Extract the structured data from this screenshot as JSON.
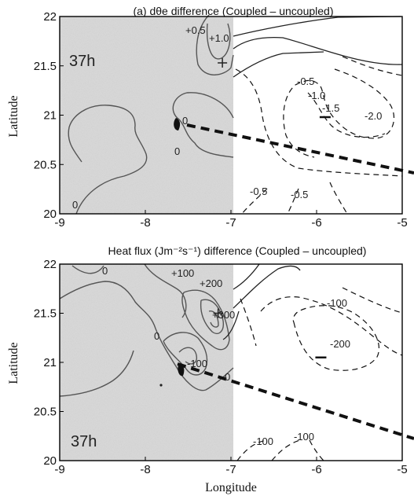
{
  "chart_data": [
    {
      "type": "contour",
      "title": "(a)  dθe difference (Coupled – uncoupled)",
      "ylabel": "Latitude",
      "xlabel": "",
      "xlim": [
        -9,
        -5
      ],
      "ylim": [
        20,
        22
      ],
      "xticks": [
        "-9",
        "-8",
        "-7",
        "-6",
        "-5"
      ],
      "yticks": [
        "20",
        "20.5",
        "21",
        "21.5",
        "22"
      ],
      "time_label": "37h",
      "contour_labels": [
        "+0.5",
        "+1.0",
        "0",
        "0",
        "0",
        "-0.5",
        "-1.0",
        "-1.5",
        "-2.0",
        "-0.5",
        "-0.5"
      ],
      "shaded_region_lon": [
        -9,
        -7
      ],
      "max_marker": {
        "lon": -7.1,
        "lat": 21.53
      },
      "min_marker": {
        "lon": -5.9,
        "lat": 20.98
      },
      "track": {
        "lon": [
          -7.5,
          -5
        ],
        "lat": [
          21.0,
          20.48
        ]
      }
    },
    {
      "type": "contour",
      "title": "Heat flux (Jm⁻²s⁻¹) difference (Coupled – uncoupled)",
      "ylabel": "Latitude",
      "xlabel": "Longitude",
      "xlim": [
        -9,
        -5
      ],
      "ylim": [
        20,
        22
      ],
      "xticks": [
        "-9",
        "-8",
        "-7",
        "-6",
        "-5"
      ],
      "yticks": [
        "20",
        "20.5",
        "21",
        "21.5",
        "22"
      ],
      "time_label": "37h",
      "contour_labels": [
        "0",
        "0",
        "+100",
        "+200",
        "+300",
        "-100",
        "0",
        "-100",
        "-200",
        "-100",
        "-100"
      ],
      "shaded_region_lon": [
        -9,
        -7
      ],
      "max_marker": {
        "lon": -7.15,
        "lat": 21.5
      },
      "min_marker": {
        "lon": -5.95,
        "lat": 21.05
      },
      "track": {
        "lon": [
          -7.55,
          -5
        ],
        "lat": [
          21.05,
          20.48
        ]
      }
    }
  ]
}
